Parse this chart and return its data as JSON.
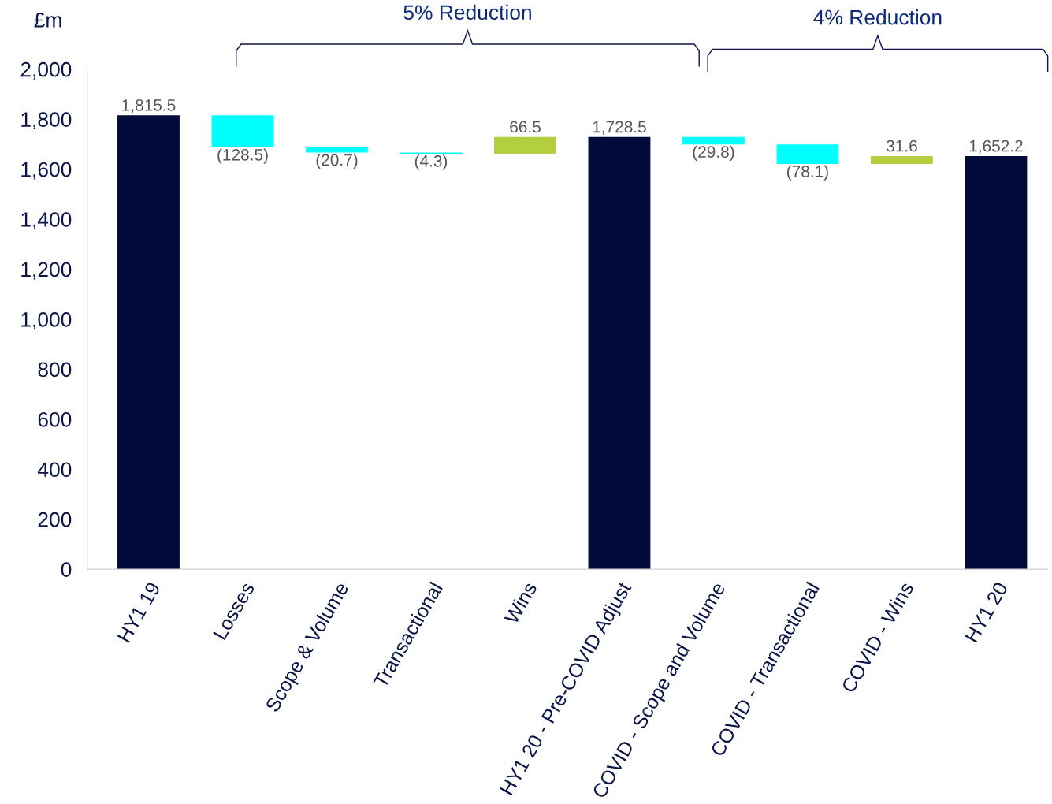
{
  "chart_data": {
    "type": "bar",
    "ylabel": "£m",
    "categories": [
      "HY1 19",
      "Losses",
      "Scope & Volume",
      "Transactional",
      "Wins",
      "HY1 20 - Pre-COVID Adjust",
      "COVID - Scope and Volume",
      "COVID - Transactional",
      "COVID - Wins",
      "HY1 20"
    ],
    "values": [
      1815.5,
      -128.5,
      -20.7,
      -4.3,
      66.5,
      1728.5,
      -29.8,
      -78.1,
      31.6,
      1652.2
    ],
    "base": [
      0,
      1815.5,
      1687.0,
      1666.3,
      1662.0,
      0,
      1728.5,
      1698.7,
      1620.6,
      0
    ],
    "colors": [
      "#020b3a",
      "#00ffff",
      "#00ffff",
      "#00ffff",
      "#b3cf3f",
      "#020b3a",
      "#00ffff",
      "#00ffff",
      "#b3cf3f",
      "#020b3a"
    ],
    "value_labels": [
      "1,815.5",
      "(128.5)",
      "(20.7)",
      "(4.3)",
      "66.5",
      "1,728.5",
      "(29.8)",
      "(78.1)",
      "31.6",
      "1,652.2"
    ],
    "ylim": [
      0,
      2000
    ],
    "yticks": [
      {
        "value": 0,
        "label": "0"
      },
      {
        "value": 200,
        "label": "200"
      },
      {
        "value": 400,
        "label": "400"
      },
      {
        "value": 600,
        "label": "600"
      },
      {
        "value": 800,
        "label": "800"
      },
      {
        "value": 1000,
        "label": "1,000"
      },
      {
        "value": 1200,
        "label": "1,200"
      },
      {
        "value": 1400,
        "label": "1,400"
      },
      {
        "value": 1600,
        "label": "1,600"
      },
      {
        "value": 1800,
        "label": "1,800"
      },
      {
        "value": 2000,
        "label": "2,000"
      }
    ],
    "annotations": [
      "5% Reduction",
      "4% Reduction"
    ],
    "grid": false,
    "legend": false
  }
}
